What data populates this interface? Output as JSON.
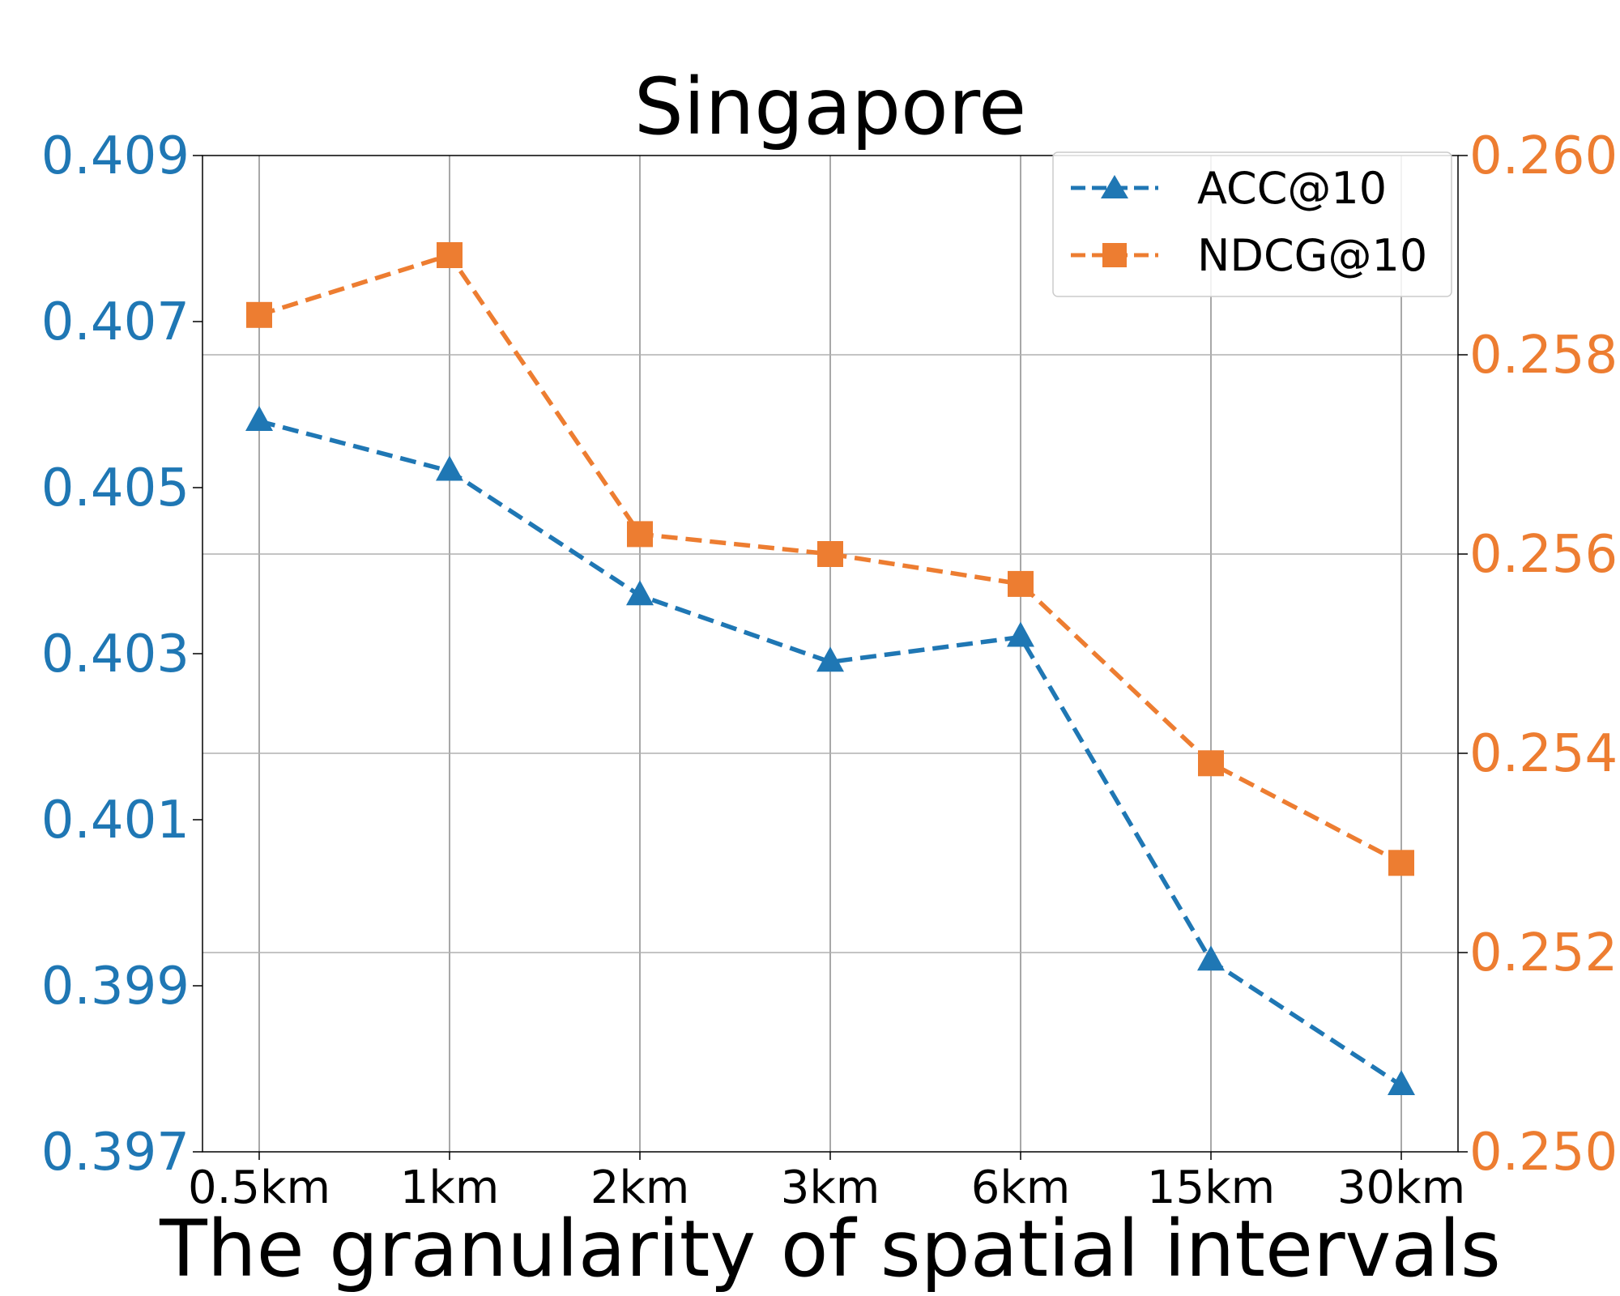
{
  "chart_data": {
    "type": "line",
    "title": "Singapore",
    "xlabel": "The granularity of spatial intervals",
    "categories": [
      "0.5km",
      "1km",
      "2km",
      "3km",
      "6km",
      "15km",
      "30km"
    ],
    "y_left": {
      "ylim": [
        0.397,
        0.409
      ],
      "ticks": [
        "0.397",
        "0.399",
        "0.401",
        "0.403",
        "0.405",
        "0.407",
        "0.409"
      ],
      "color": "#1f77b4"
    },
    "y_right": {
      "ylim": [
        0.25,
        0.26
      ],
      "ticks": [
        "0.250",
        "0.252",
        "0.254",
        "0.256",
        "0.258",
        "0.260"
      ],
      "color": "#ed7d31"
    },
    "series": [
      {
        "name": "ACC@10",
        "axis": "left",
        "marker": "triangle",
        "color": "#1f77b4",
        "values": [
          0.4058,
          0.4052,
          0.4037,
          0.4029,
          0.4032,
          0.3993,
          0.3978
        ]
      },
      {
        "name": "NDCG@10",
        "axis": "right",
        "marker": "square",
        "color": "#ed7d31",
        "values": [
          0.2584,
          0.259,
          0.2562,
          0.256,
          0.2557,
          0.2539,
          0.2529
        ]
      }
    ],
    "grid": true,
    "legend_position": "top-right"
  }
}
